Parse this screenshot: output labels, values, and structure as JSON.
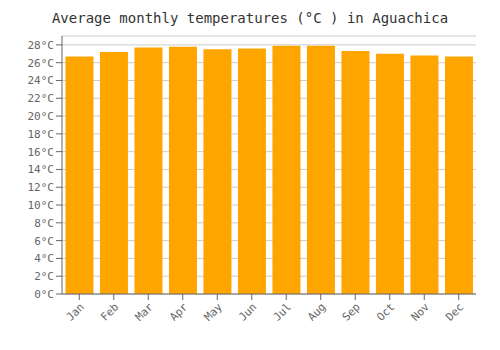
{
  "chart_data": {
    "type": "bar",
    "title": "Average monthly temperatures (°C ) in Aguachica",
    "categories": [
      "Jan",
      "Feb",
      "Mar",
      "Apr",
      "May",
      "Jun",
      "Jul",
      "Aug",
      "Sep",
      "Oct",
      "Nov",
      "Dec"
    ],
    "values": [
      26.7,
      27.2,
      27.7,
      27.8,
      27.5,
      27.6,
      27.9,
      27.9,
      27.3,
      27.0,
      26.8,
      26.7
    ],
    "color": "#FFA500",
    "ylim": [
      0,
      29
    ],
    "yticks": [
      {
        "value": 0,
        "label": "0°C"
      },
      {
        "value": 2,
        "label": "2°C"
      },
      {
        "value": 4,
        "label": "4°C"
      },
      {
        "value": 6,
        "label": "6°C"
      },
      {
        "value": 8,
        "label": "8°C"
      },
      {
        "value": 10,
        "label": "10°C"
      },
      {
        "value": 12,
        "label": "12°C"
      },
      {
        "value": 14,
        "label": "14°C"
      },
      {
        "value": 16,
        "label": "16°C"
      },
      {
        "value": 18,
        "label": "18°C"
      },
      {
        "value": 20,
        "label": "20°C"
      },
      {
        "value": 22,
        "label": "22°C"
      },
      {
        "value": 24,
        "label": "24°C"
      },
      {
        "value": 26,
        "label": "26°C"
      },
      {
        "value": 28,
        "label": "28°C"
      }
    ],
    "grid": true
  }
}
